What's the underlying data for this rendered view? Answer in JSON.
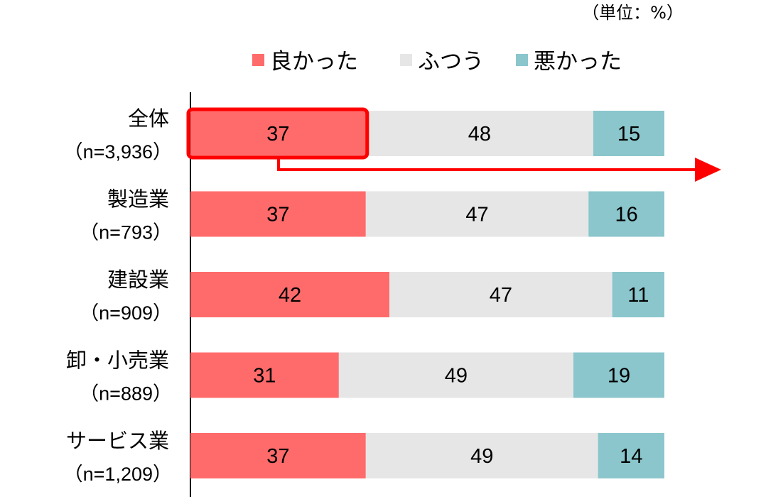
{
  "unit_note": "（単位：%）",
  "colors": {
    "good": "#ff6b6b",
    "normal": "#e6e6e6",
    "bad": "#8ac6cc",
    "highlight": "#ff0000",
    "axis": "#000000"
  },
  "chart_data": {
    "type": "bar",
    "orientation": "horizontal",
    "stacked": true,
    "percent_stacked": true,
    "categories": [
      {
        "name": "全体",
        "n_label": "（n=3,936）"
      },
      {
        "name": "製造業",
        "n_label": "（n=793）"
      },
      {
        "name": "建設業",
        "n_label": "（n=909）"
      },
      {
        "name": "卸・小売業",
        "n_label": "（n=889）"
      },
      {
        "name": "サービス業",
        "n_label": "（n=1,209）"
      }
    ],
    "series": [
      {
        "name": "良かった",
        "color": "#ff6b6b",
        "values": [
          37,
          37,
          42,
          31,
          37
        ]
      },
      {
        "name": "ふつう",
        "color": "#e6e6e6",
        "values": [
          48,
          47,
          47,
          49,
          49
        ]
      },
      {
        "name": "悪かった",
        "color": "#8ac6cc",
        "values": [
          15,
          16,
          11,
          19,
          14
        ]
      }
    ],
    "legend_position": "top",
    "grid": false,
    "annotations": [
      {
        "type": "highlight-box",
        "target": "全体 / 良かった",
        "with_arrow": true
      }
    ]
  }
}
